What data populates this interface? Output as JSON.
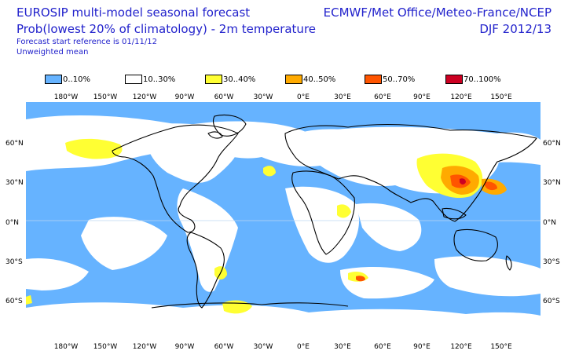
{
  "header": {
    "title": "EUROSIP multi-model seasonal forecast",
    "subtitle": "Prob(lowest 20% of climatology) - 2m temperature",
    "start_ref": "Forecast start reference is 01/11/12",
    "mean_type": "Unweighted mean",
    "centres": "ECMWF/Met Office/Meteo-France/NCEP",
    "season": "DJF 2012/13"
  },
  "legend": [
    {
      "label": "0..10%",
      "color": "#66b3ff"
    },
    {
      "label": "10..30%",
      "color": "#ffffff"
    },
    {
      "label": "30..40%",
      "color": "#ffff33"
    },
    {
      "label": "40..50%",
      "color": "#ffaa00"
    },
    {
      "label": "50..70%",
      "color": "#ff5500"
    },
    {
      "label": "70..100%",
      "color": "#cc0022"
    }
  ],
  "axes": {
    "lon_ticks": [
      "180°W",
      "150°W",
      "120°W",
      "90°W",
      "60°W",
      "30°W",
      "0°E",
      "30°E",
      "60°E",
      "90°E",
      "120°E",
      "150°E"
    ],
    "lat_ticks_left": [
      "60°N",
      "30°N",
      "0°N",
      "30°S",
      "60°S"
    ],
    "lat_ticks_right": [
      "60°N",
      "30°N",
      "0°N",
      "30°S",
      "60°S"
    ]
  },
  "map": {
    "background_color": "#66b3ff",
    "coastline_color": "#000000",
    "grid_color": "#bcd7f2"
  }
}
